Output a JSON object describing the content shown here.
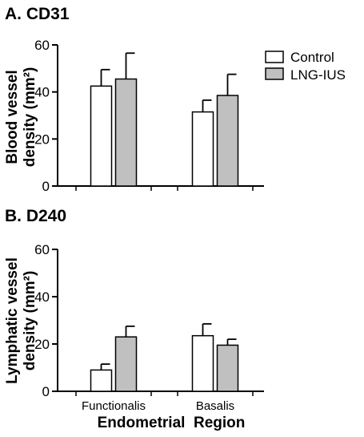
{
  "legend": {
    "items": [
      {
        "label": "Control",
        "color": "#ffffff"
      },
      {
        "label": "LNG-IUS",
        "color": "#c0c0c0"
      }
    ]
  },
  "x_title": "Endometrial  Region",
  "chart_data": [
    {
      "type": "bar",
      "title": "A. CD31",
      "ylabel_line1": "Blood vessel",
      "ylabel_line2": "density (mm²)",
      "categories": [
        "Functionalis",
        "Basalis"
      ],
      "ylim": [
        0,
        60
      ],
      "yticks": [
        0,
        20,
        40,
        60
      ],
      "show_category_labels": false,
      "series": [
        {
          "name": "Control",
          "color": "#ffffff",
          "values": [
            42.5,
            31.5
          ],
          "errors": [
            7,
            5
          ]
        },
        {
          "name": "LNG-IUS",
          "color": "#c0c0c0",
          "values": [
            45.5,
            38.5
          ],
          "errors": [
            11,
            9
          ]
        }
      ],
      "grid": false
    },
    {
      "type": "bar",
      "title": "B. D240",
      "ylabel_line1": "Lymphatic vessel",
      "ylabel_line2": "density (mm²)",
      "categories": [
        "Functionalis",
        "Basalis"
      ],
      "ylim": [
        0,
        60
      ],
      "yticks": [
        0,
        20,
        40,
        60
      ],
      "show_category_labels": true,
      "series": [
        {
          "name": "Control",
          "color": "#ffffff",
          "values": [
            9,
            23.5
          ],
          "errors": [
            2.5,
            5
          ]
        },
        {
          "name": "LNG-IUS",
          "color": "#c0c0c0",
          "values": [
            23,
            19.5
          ],
          "errors": [
            4.5,
            2.5
          ]
        }
      ],
      "grid": false
    }
  ]
}
